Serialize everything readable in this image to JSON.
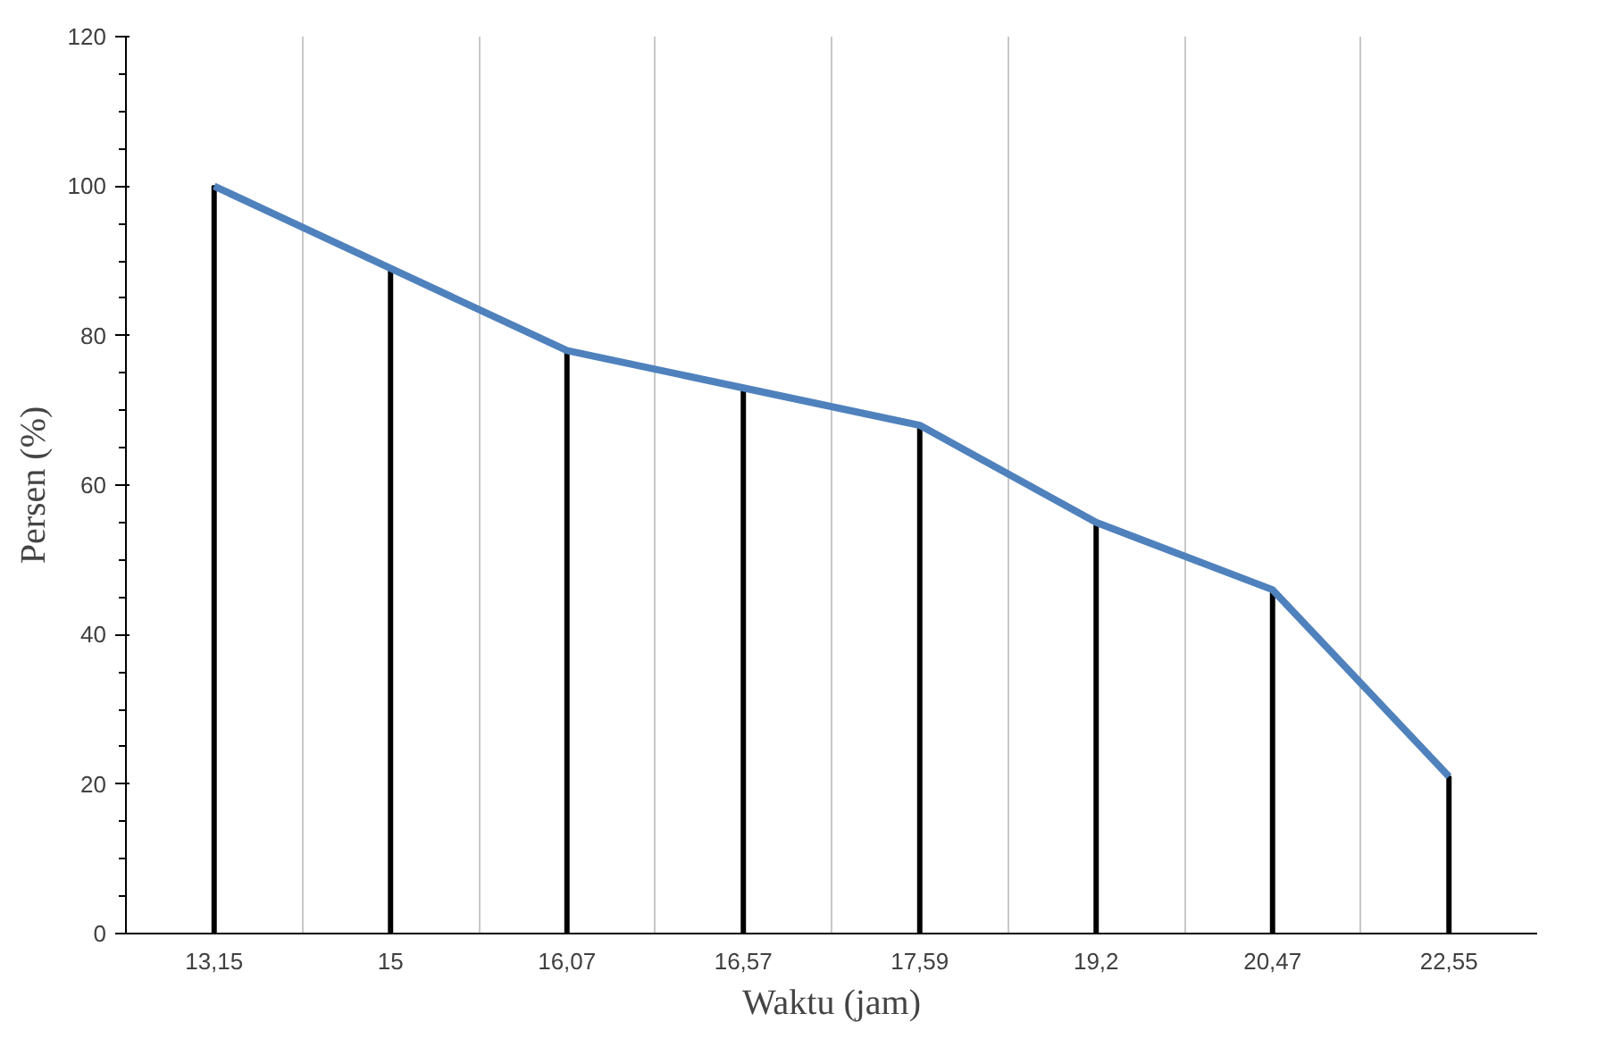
{
  "chart_data": {
    "type": "line",
    "xlabel": "Waktu (jam)",
    "ylabel": "Persen (%)",
    "categories": [
      "13,15",
      "15",
      "16,07",
      "16,57",
      "17,59",
      "19,2",
      "20,47",
      "22,55"
    ],
    "series": [
      {
        "type": "bar",
        "color": "#000000",
        "values": [
          100,
          89,
          78,
          73,
          68,
          55,
          46,
          21
        ]
      },
      {
        "color": "#4f81bd",
        "values": [
          100,
          89,
          78,
          73,
          68,
          55,
          46,
          21
        ]
      }
    ],
    "ylim": [
      0,
      120
    ],
    "yticks": [
      0,
      20,
      40,
      60,
      80,
      100,
      120
    ],
    "grid": "x",
    "marker": "none",
    "line_style": "solid"
  }
}
